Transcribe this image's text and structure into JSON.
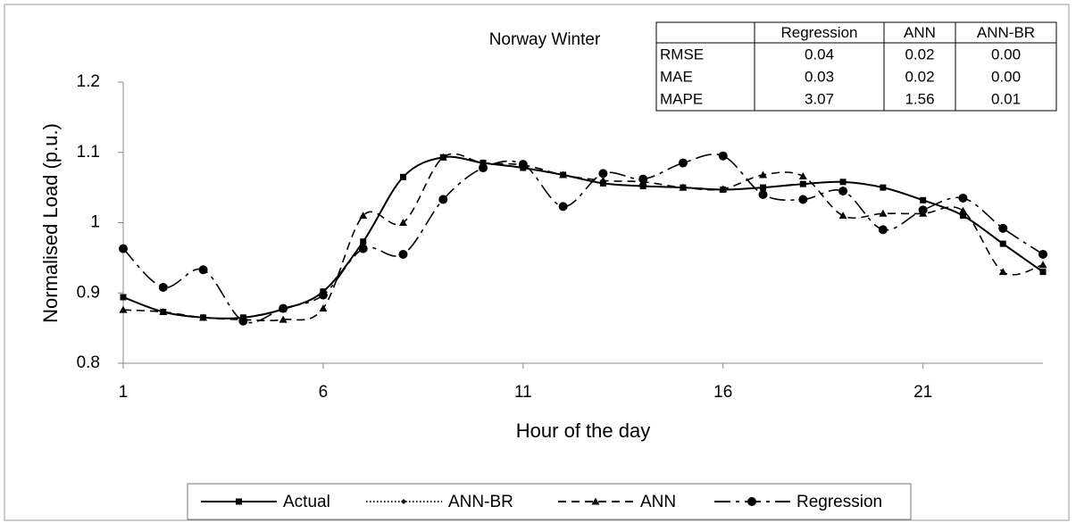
{
  "chart_data": {
    "type": "line",
    "title": "Norway Winter",
    "xlabel": "Hour of the day",
    "ylabel": "Normalised Load (p.u.)",
    "x": [
      1,
      2,
      3,
      4,
      5,
      6,
      7,
      8,
      9,
      10,
      11,
      12,
      13,
      14,
      15,
      16,
      17,
      18,
      19,
      20,
      21,
      22,
      23,
      24
    ],
    "xlim": [
      1,
      24
    ],
    "xticks": [
      1,
      6,
      11,
      16,
      21
    ],
    "ylim": [
      0.8,
      1.2
    ],
    "yticks": [
      0.8,
      0.9,
      1,
      1.1,
      1.2
    ],
    "grid": false,
    "legend": "bottom",
    "series": [
      {
        "name": "Actual",
        "color": "#000000",
        "values": [
          0.894,
          0.873,
          0.865,
          0.865,
          0.877,
          0.902,
          0.973,
          1.065,
          1.093,
          1.085,
          1.078,
          1.068,
          1.056,
          1.052,
          1.05,
          1.047,
          1.05,
          1.055,
          1.058,
          1.05,
          1.032,
          1.01,
          0.97,
          0.93
        ]
      },
      {
        "name": "ANN-BR",
        "color": "#000000",
        "values": [
          0.894,
          0.873,
          0.865,
          0.865,
          0.877,
          0.902,
          0.973,
          1.065,
          1.093,
          1.085,
          1.078,
          1.068,
          1.056,
          1.052,
          1.05,
          1.047,
          1.05,
          1.055,
          1.058,
          1.05,
          1.032,
          1.01,
          0.97,
          0.93
        ]
      },
      {
        "name": "ANN",
        "color": "#000000",
        "values": [
          0.876,
          0.873,
          0.865,
          0.862,
          0.862,
          0.878,
          1.01,
          1.0,
          1.093,
          1.085,
          1.082,
          1.068,
          1.06,
          1.058,
          1.05,
          1.048,
          1.068,
          1.066,
          1.01,
          1.013,
          1.013,
          1.017,
          0.93,
          0.94
        ]
      },
      {
        "name": "Regression",
        "color": "#000000",
        "values": [
          0.963,
          0.908,
          0.933,
          0.86,
          0.878,
          0.897,
          0.963,
          0.955,
          1.033,
          1.078,
          1.083,
          1.023,
          1.07,
          1.062,
          1.085,
          1.095,
          1.04,
          1.033,
          1.045,
          0.99,
          1.018,
          1.035,
          0.992,
          0.955
        ]
      }
    ],
    "table": {
      "columns": [
        "Regression",
        "ANN",
        "ANN-BR"
      ],
      "rows": [
        {
          "label": "RMSE",
          "values": [
            "0.04",
            "0.02",
            "0.00"
          ]
        },
        {
          "label": "MAE",
          "values": [
            "0.03",
            "0.02",
            "0.00"
          ]
        },
        {
          "label": "MAPE",
          "values": [
            "3.07",
            "1.56",
            "0.01"
          ]
        }
      ]
    }
  }
}
